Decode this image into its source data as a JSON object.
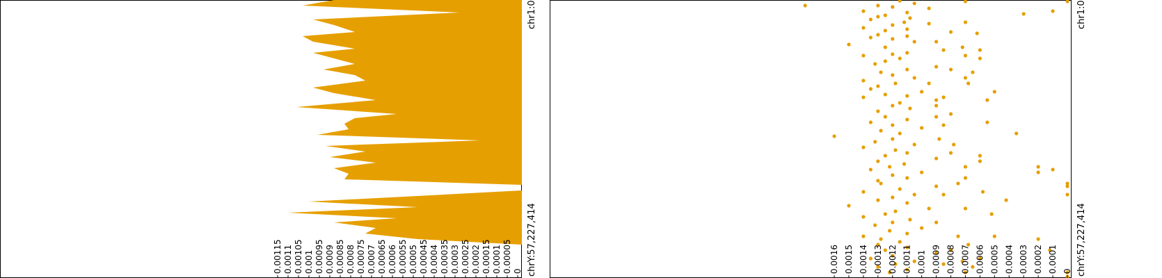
{
  "colors": {
    "series": "#E69F00",
    "axis": "#000000",
    "background": "#ffffff"
  },
  "chart_data": [
    {
      "type": "area",
      "orientation": "vertical-genome-axis",
      "genome_axis": {
        "start_label": "chr1:0",
        "end_label": "chrY:57,227,414",
        "range": [
          0,
          1
        ]
      },
      "value_axis": {
        "range": [
          0,
          0.0012
        ],
        "ticks": [
          0,
          5e-05,
          0.0001,
          0.00015,
          0.0002,
          0.00025,
          0.0003,
          0.00035,
          0.0004,
          0.00045,
          0.0005,
          0.00055,
          0.0006,
          0.00065,
          0.0007,
          0.00075,
          0.0008,
          0.00085,
          0.0009,
          0.00095,
          0.001,
          0.00105,
          0.0011,
          0.00115
        ],
        "tick_labels": [
          "0",
          "0.00005",
          "0.0001",
          "0.00015",
          "0.0002",
          "0.00025",
          "0.0003",
          "0.00035",
          "0.0004",
          "0.00045",
          "0.0005",
          "0.00055",
          "0.0006",
          "0.00065",
          "0.0007",
          "0.00075",
          "0.0008",
          "0.00085",
          "0.0009",
          "0.00095",
          "0.001",
          "0.00105",
          "0.0011",
          "0.00115"
        ]
      },
      "points": [
        [
          0.0,
          0.0009
        ],
        [
          0.02,
          0.00105
        ],
        [
          0.045,
          0.0003
        ],
        [
          0.07,
          0.001
        ],
        [
          0.09,
          0.0009
        ],
        [
          0.115,
          0.0008
        ],
        [
          0.13,
          0.00105
        ],
        [
          0.15,
          0.001
        ],
        [
          0.175,
          0.0008
        ],
        [
          0.19,
          0.001
        ],
        [
          0.21,
          0.0009
        ],
        [
          0.23,
          0.0008
        ],
        [
          0.25,
          0.00095
        ],
        [
          0.27,
          0.0008
        ],
        [
          0.29,
          0.00075
        ],
        [
          0.315,
          0.001
        ],
        [
          0.335,
          0.0009
        ],
        [
          0.36,
          0.0007
        ],
        [
          0.385,
          0.00108
        ],
        [
          0.41,
          0.0006
        ],
        [
          0.425,
          0.0008
        ],
        [
          0.445,
          0.00085
        ],
        [
          0.465,
          0.00083
        ],
        [
          0.485,
          0.00098
        ],
        [
          0.505,
          0.0002
        ],
        [
          0.525,
          0.00094
        ],
        [
          0.545,
          0.00075
        ],
        [
          0.565,
          0.00092
        ],
        [
          0.585,
          0.0007
        ],
        [
          0.605,
          0.0009
        ],
        [
          0.625,
          0.00083
        ],
        [
          0.645,
          0.00085
        ],
        [
          0.665,
          0.0
        ],
        [
          0.685,
          0.0
        ],
        [
          0.705,
          0.0005
        ],
        [
          0.725,
          0.00102
        ],
        [
          0.745,
          0.0005
        ],
        [
          0.765,
          0.00112
        ],
        [
          0.785,
          0.0006
        ],
        [
          0.8,
          0.0009
        ],
        [
          0.82,
          0.0007
        ],
        [
          0.84,
          0.00075
        ],
        [
          0.86,
          0.0005
        ],
        [
          0.88,
          0.0
        ],
        [
          1.0,
          0.0
        ]
      ]
    },
    {
      "type": "scatter",
      "orientation": "vertical-genome-axis",
      "genome_axis": {
        "start_label": "chr1:0",
        "end_label": "chrY:57,227,414",
        "range": [
          0,
          1
        ]
      },
      "value_axis": {
        "range": [
          0,
          0.0018
        ],
        "ticks": [
          0,
          0.0001,
          0.0002,
          0.0003,
          0.0004,
          0.0005,
          0.0006,
          0.0007,
          0.0008,
          0.0009,
          0.001,
          0.0011,
          0.0012,
          0.0013,
          0.0014,
          0.0015,
          0.0016
        ],
        "tick_labels": [
          "0",
          "0.0001",
          "0.0002",
          "0.0003",
          "0.0004",
          "0.0005",
          "0.0006",
          "0.0007",
          "0.0008",
          "0.0009",
          "0.001",
          "0.0011",
          "0.0012",
          "0.0013",
          "0.0014",
          "0.0015",
          "0.0016"
        ]
      },
      "points": [
        [
          0.003,
          0.00115
        ],
        [
          0.005,
          0.0007
        ],
        [
          0.012,
          0.00105
        ],
        [
          0.02,
          0.0013
        ],
        [
          0.025,
          0.0012
        ],
        [
          0.03,
          0.00095
        ],
        [
          0.04,
          0.0014
        ],
        [
          0.045,
          0.0011
        ],
        [
          0.05,
          0.0003
        ],
        [
          0.055,
          0.00125
        ],
        [
          0.06,
          0.0013
        ],
        [
          0.065,
          0.00108
        ],
        [
          0.07,
          0.00135
        ],
        [
          0.08,
          0.00112
        ],
        [
          0.085,
          0.00095
        ],
        [
          0.09,
          0.0012
        ],
        [
          0.1,
          0.0014
        ],
        [
          0.105,
          0.0011
        ],
        [
          0.11,
          0.00125
        ],
        [
          0.115,
          0.0008
        ],
        [
          0.125,
          0.0013
        ],
        [
          0.13,
          0.0011
        ],
        [
          0.135,
          0.00135
        ],
        [
          0.14,
          0.0012
        ],
        [
          0.15,
          0.00105
        ],
        [
          0.16,
          0.0015
        ],
        [
          0.17,
          0.00125
        ],
        [
          0.18,
          0.0006
        ],
        [
          0.19,
          0.0011
        ],
        [
          0.195,
          0.0012
        ],
        [
          0.2,
          0.0014
        ],
        [
          0.21,
          0.00115
        ],
        [
          0.22,
          0.00125
        ],
        [
          0.23,
          0.00132
        ],
        [
          0.24,
          0.0009
        ],
        [
          0.25,
          0.0011
        ],
        [
          0.26,
          0.00128
        ],
        [
          0.27,
          0.0012
        ],
        [
          0.28,
          0.00105
        ],
        [
          0.29,
          0.0014
        ],
        [
          0.3,
          0.00118
        ],
        [
          0.31,
          0.0013
        ],
        [
          0.32,
          0.00135
        ],
        [
          0.33,
          0.001
        ],
        [
          0.34,
          0.00125
        ],
        [
          0.345,
          0.0011
        ],
        [
          0.35,
          0.0014
        ],
        [
          0.36,
          0.0009
        ],
        [
          0.37,
          0.00115
        ],
        [
          0.38,
          0.0012
        ],
        [
          0.39,
          0.00108
        ],
        [
          0.4,
          0.0013
        ],
        [
          0.41,
          0.0008
        ],
        [
          0.42,
          0.00125
        ],
        [
          0.43,
          0.0011
        ],
        [
          0.44,
          0.00135
        ],
        [
          0.45,
          0.0012
        ],
        [
          0.46,
          0.001
        ],
        [
          0.47,
          0.00128
        ],
        [
          0.48,
          0.00115
        ],
        [
          0.49,
          0.0016
        ],
        [
          0.5,
          0.0012
        ],
        [
          0.51,
          0.00132
        ],
        [
          0.52,
          0.00105
        ],
        [
          0.53,
          0.0014
        ],
        [
          0.54,
          0.00118
        ],
        [
          0.55,
          0.0011
        ],
        [
          0.56,
          0.00125
        ],
        [
          0.57,
          0.0009
        ],
        [
          0.58,
          0.0013
        ],
        [
          0.59,
          0.00112
        ],
        [
          0.6,
          0.00122
        ],
        [
          0.61,
          0.00135
        ],
        [
          0.62,
          0.001
        ],
        [
          0.63,
          0.0012
        ],
        [
          0.64,
          0.0011
        ],
        [
          0.65,
          0.0013
        ],
        [
          0.66,
          0.00128
        ],
        [
          0.67,
          0.0009
        ],
        [
          0.68,
          0.00115
        ],
        [
          0.69,
          0.0014
        ],
        [
          0.7,
          0.00105
        ],
        [
          0.71,
          0.0012
        ],
        [
          0.72,
          0.0013
        ],
        [
          0.73,
          0.0011
        ],
        [
          0.74,
          0.0015
        ],
        [
          0.75,
          0.00095
        ],
        [
          0.76,
          0.00118
        ],
        [
          0.77,
          0.00125
        ],
        [
          0.78,
          0.0014
        ],
        [
          0.79,
          0.00108
        ],
        [
          0.8,
          0.0012
        ],
        [
          0.81,
          0.00132
        ],
        [
          0.82,
          0.001
        ],
        [
          0.83,
          0.00122
        ],
        [
          0.84,
          0.0011
        ],
        [
          0.85,
          0.0014
        ],
        [
          0.86,
          0.00128
        ],
        [
          0.87,
          0.00115
        ],
        [
          0.88,
          0.0013
        ],
        [
          0.89,
          0.0011
        ],
        [
          0.9,
          0.00125
        ],
        [
          0.91,
          0.0009
        ],
        [
          0.92,
          0.0012
        ],
        [
          0.93,
          0.00135
        ],
        [
          0.94,
          0.00105
        ],
        [
          0.95,
          0.00118
        ],
        [
          0.96,
          0.0013
        ],
        [
          0.97,
          0.0011
        ],
        [
          0.98,
          0.00122
        ],
        [
          0.15,
          0.0009
        ],
        [
          0.18,
          0.00085
        ],
        [
          0.2,
          0.0007
        ],
        [
          0.25,
          0.0008
        ],
        [
          0.3,
          0.00095
        ],
        [
          0.42,
          0.0009
        ],
        [
          0.45,
          0.00085
        ],
        [
          0.55,
          0.0008
        ],
        [
          0.6,
          0.0007
        ],
        [
          0.66,
          0.00075
        ],
        [
          0.7,
          0.00085
        ],
        [
          0.75,
          0.0007
        ],
        [
          0.8,
          0.0009
        ],
        [
          0.85,
          0.00075
        ],
        [
          0.9,
          0.0008
        ],
        [
          0.95,
          0.00085
        ],
        [
          0.98,
          0.0007
        ],
        [
          0.35,
          0.00085
        ],
        [
          0.38,
          0.0009
        ],
        [
          0.5,
          0.00088
        ],
        [
          0.02,
          0.0018
        ],
        [
          0.04,
          0.0001
        ],
        [
          0.08,
          0.0007
        ],
        [
          0.12,
          0.00062
        ],
        [
          0.26,
          0.00065
        ],
        [
          0.33,
          0.0005
        ],
        [
          0.36,
          0.00055
        ],
        [
          0.44,
          0.00055
        ],
        [
          0.48,
          0.00035
        ],
        [
          0.56,
          0.0006
        ],
        [
          0.6,
          0.0002
        ],
        [
          0.61,
          0.0001
        ],
        [
          0.62,
          0.0002
        ],
        [
          0.72,
          0.00042
        ],
        [
          0.77,
          0.00052
        ],
        [
          0.85,
          0.0005
        ],
        [
          0.86,
          0.0002
        ],
        [
          0.9,
          0.00012
        ],
        [
          0.93,
          0.0006
        ],
        [
          0.96,
          0.00065
        ],
        [
          0.28,
          0.0007
        ],
        [
          0.17,
          0.00072
        ],
        [
          0.21,
          0.0006
        ],
        [
          0.3,
          0.00068
        ],
        [
          0.94,
          0.00072
        ],
        [
          0.88,
          0.00068
        ],
        [
          0.52,
          0.00078
        ],
        [
          0.58,
          0.0006
        ],
        [
          0.64,
          0.0007
        ],
        [
          0.69,
          0.00058
        ],
        [
          0.005,
          0.0
        ],
        [
          0.66,
          0.0
        ],
        [
          0.67,
          0.0
        ],
        [
          0.7,
          0.0
        ],
        [
          0.98,
          0.0
        ],
        [
          0.995,
          0.0
        ]
      ]
    }
  ]
}
